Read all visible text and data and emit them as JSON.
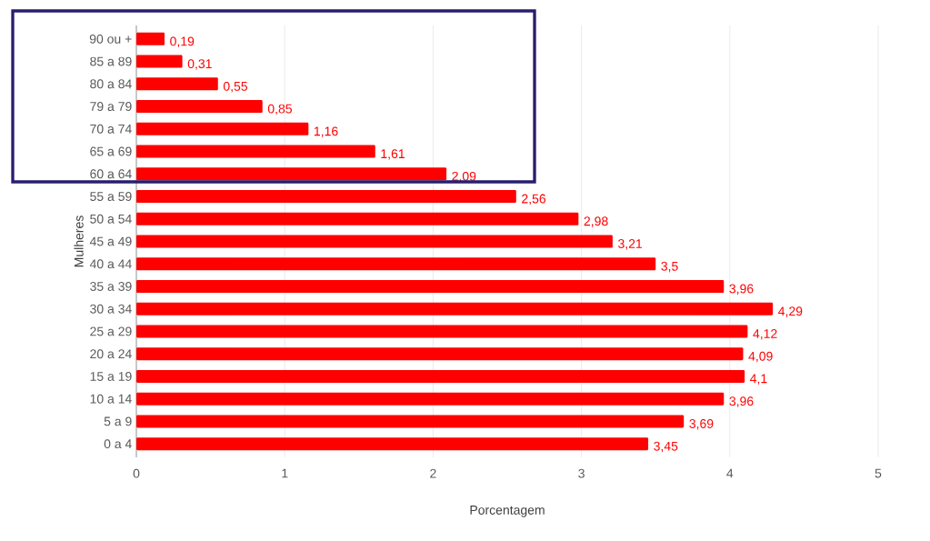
{
  "chart_data": {
    "type": "bar",
    "orientation": "horizontal",
    "xlabel": "Porcentagem",
    "ylabel": "Mulheres",
    "categories": [
      "90 ou +",
      "85 a 89",
      "80 a 84",
      "79 a 79",
      "70 a 74",
      "65 a 69",
      "60 a 64",
      "55 a 59",
      "50 a 54",
      "45 a 49",
      "40 a 44",
      "35 a 39",
      "30 a 34",
      "25 a 29",
      "20 a 24",
      "15 a 19",
      "10 a 14",
      "5 a 9",
      "0 a 4"
    ],
    "values": [
      0.19,
      0.31,
      0.55,
      0.85,
      1.16,
      1.61,
      2.09,
      2.56,
      2.98,
      3.21,
      3.5,
      3.96,
      4.29,
      4.12,
      4.09,
      4.1,
      3.96,
      3.69,
      3.45
    ],
    "value_labels": [
      "0,19",
      "0,31",
      "0,55",
      "0,85",
      "1,16",
      "1,61",
      "2,09",
      "2,56",
      "2,98",
      "3,21",
      "3,5",
      "3,96",
      "4,29",
      "4,12",
      "4,09",
      "4,1",
      "3,96",
      "3,69",
      "3,45"
    ],
    "color": "#ff0000",
    "grid": "x",
    "xlim": [
      0,
      5
    ],
    "xticks": [
      0,
      1,
      2,
      3,
      4,
      5
    ]
  }
}
